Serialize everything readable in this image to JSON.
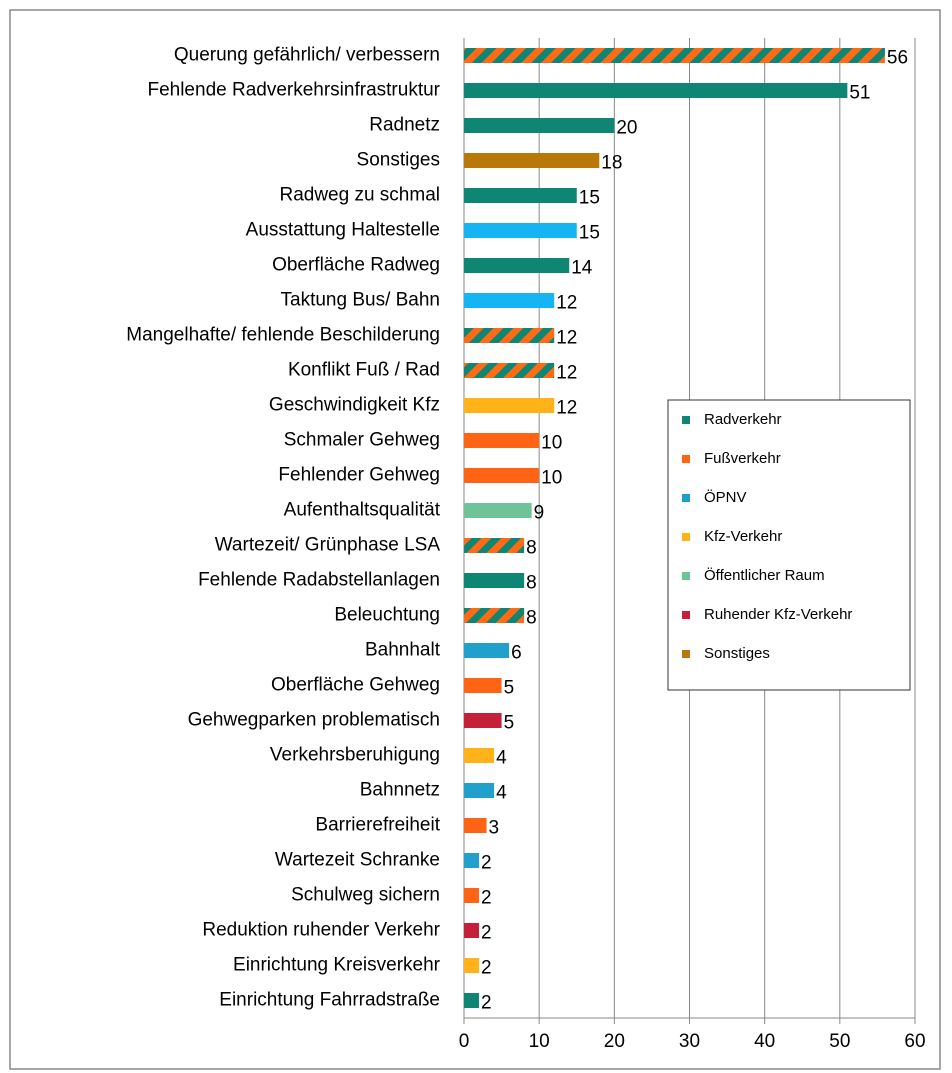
{
  "chart_data": {
    "type": "bar",
    "orientation": "horizontal",
    "categories": [
      "Querung gefährlich/ verbessern",
      "Fehlende Radverkehrsinfrastruktur",
      "Radnetz",
      "Sonstiges",
      "Radweg zu schmal",
      "Ausstattung Haltestelle ",
      "Oberfläche Radweg",
      "Taktung Bus/ Bahn",
      "Mangelhafte/ fehlende Beschilderung",
      "Konflikt Fuß / Rad",
      "Geschwindigkeit Kfz",
      "Schmaler Gehweg",
      "Fehlender Gehweg",
      "Aufenthaltsqualität",
      "Wartezeit/ Grünphase LSA",
      "Fehlende Radabstellanlagen",
      "Beleuchtung",
      "Bahnhalt",
      "Oberfläche Gehweg",
      "Gehwegparken problematisch",
      "Verkehrsberuhigung",
      "Bahnnetz",
      "Barrierefreiheit",
      "Wartezeit Schranke",
      "Schulweg sichern",
      "Reduktion ruhender Verkehr",
      "Einrichtung Kreisverkehr",
      "Einrichtung Fahrradstraße"
    ],
    "values": [
      56,
      51,
      20,
      18,
      15,
      15,
      14,
      12,
      12,
      12,
      12,
      10,
      10,
      9,
      8,
      8,
      8,
      6,
      5,
      5,
      4,
      4,
      3,
      2,
      2,
      2,
      2,
      2
    ],
    "colors": [
      [
        "#0f8574",
        "#ff6a14"
      ],
      "#0f8574",
      "#0f8574",
      "#b8780a",
      "#0f8574",
      "#16b4f2",
      "#0f8574",
      "#16b4f2",
      [
        "#0f8574",
        "#ff6a14"
      ],
      [
        "#0f8574",
        "#ff6a14"
      ],
      "#ffb319",
      "#ff6314",
      "#ff6314",
      "#6fc39b",
      [
        "#0f8574",
        "#ff6a14"
      ],
      "#0f8574",
      [
        "#0f8574",
        "#ff6a14"
      ],
      "#22a0cc",
      "#ff6314",
      "#c4203a",
      "#ffb319",
      "#22a0cc",
      "#ff6314",
      "#22a0cc",
      "#ff6314",
      "#c4203a",
      "#ffb319",
      "#0f8574"
    ],
    "xlim": [
      0,
      60
    ],
    "xticks": [
      0,
      10,
      20,
      30,
      40,
      50,
      60
    ],
    "grid": true,
    "legend": [
      {
        "name": "Radverkehr",
        "color": "#0f8574"
      },
      {
        "name": "Fußverkehr",
        "color": "#ff6314"
      },
      {
        "name": "ÖPNV",
        "color": "#1e9fcc"
      },
      {
        "name": "Kfz-Verkehr",
        "color": "#ffb319"
      },
      {
        "name": "Öffentlicher Raum",
        "color": "#6fc39b"
      },
      {
        "name": "Ruhender Kfz-Verkehr",
        "color": "#c4203a"
      },
      {
        "name": "Sonstiges",
        "color": "#b8780a"
      }
    ]
  }
}
